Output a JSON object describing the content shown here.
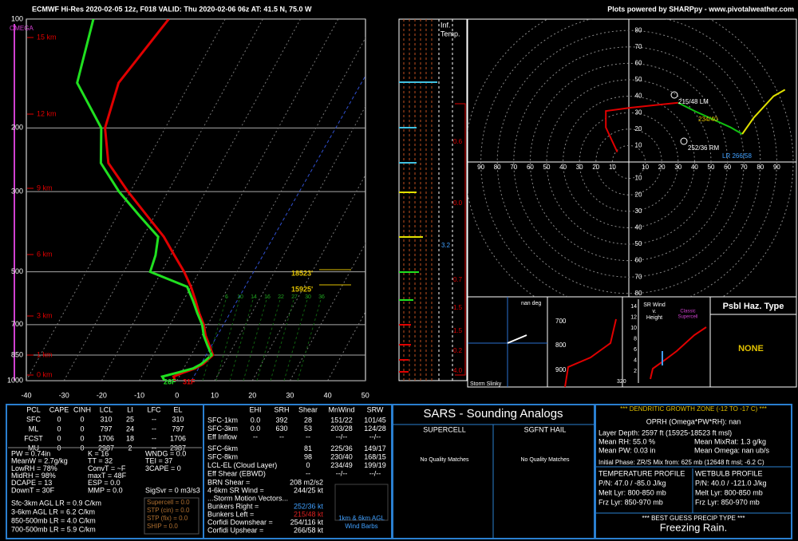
{
  "header": {
    "title": "ECMWF Hi-Res 2020-02-05 12z, F018   VALID: Thu 2020-02-06 06z   AT: 41.5 N, 75.0 W",
    "credit": "Plots powered by SHARPpy - www.pivotalweather.com"
  },
  "skewt": {
    "omega_label": "OMEGA",
    "pressure_ticks": [
      100,
      200,
      300,
      500,
      700,
      850,
      1000
    ],
    "temp_ticks": [
      -40,
      -30,
      -20,
      -10,
      0,
      10,
      20,
      30,
      40,
      50
    ],
    "height_labels": [
      "15 km",
      "12 km",
      "9 km",
      "6 km",
      "3 km",
      "1 km",
      "0 km"
    ],
    "pressure": [
      1000,
      975,
      950,
      925,
      900,
      850,
      800,
      750,
      700,
      650,
      600,
      550,
      500,
      450,
      400,
      350,
      300,
      250,
      200,
      150,
      100
    ],
    "temperature": [
      -0.5,
      -1.5,
      0.5,
      3,
      4.5,
      5.8,
      3.5,
      1,
      -1.1,
      -4,
      -6.8,
      -10,
      -14,
      -19,
      -24.5,
      -32,
      -40.6,
      -50,
      -56,
      -59,
      -55
    ],
    "dewpoint": [
      -3.3,
      -4.5,
      -1,
      2.5,
      4,
      5.5,
      3,
      0.5,
      -1.5,
      -4.5,
      -7.5,
      -11,
      -23,
      -24,
      -26,
      -34,
      -43,
      -52,
      -57,
      -70,
      -75
    ],
    "surface_dewpoint_label": "26F",
    "surface_temp_label": "31F",
    "dgz_top": "18523'",
    "dgz_bottom": "15925'",
    "mixing_ratio_labels": [
      "6",
      "10",
      "14",
      "16",
      "22",
      "27",
      "30",
      "36"
    ]
  },
  "inferred_temp": {
    "title": [
      "Inf.",
      "Temp."
    ],
    "values": [
      "0.6",
      "0.0",
      "3.2",
      "0.7",
      "1.5",
      "1.5",
      "0.2",
      "4.0"
    ]
  },
  "hodograph": {
    "rings": [
      10,
      20,
      30,
      40,
      50,
      60,
      70,
      80,
      90,
      100
    ],
    "series": [
      {
        "color": "#e00000",
        "u": [
          -7,
          -14,
          -14,
          1,
          20,
          30
        ],
        "v": [
          6,
          21,
          31,
          33,
          35,
          36
        ]
      },
      {
        "color": "#10c010",
        "u": [
          30,
          40,
          62,
          69
        ],
        "v": [
          36,
          31,
          21,
          17
        ]
      },
      {
        "color": "#e0e000",
        "u": [
          69,
          76,
          88,
          95
        ],
        "v": [
          17,
          27,
          40,
          44
        ]
      }
    ],
    "labels": [
      "215/48 LM",
      "252/36 RM",
      "234/40",
      "LR 266/58"
    ]
  },
  "slinky": {
    "deg": "nan deg",
    "title": "Storm Slinky"
  },
  "theta_panel": {
    "ticks": [
      "700",
      "800",
      "900"
    ],
    "corner": "320"
  },
  "sr_wind": {
    "title": [
      "SR Wind",
      "v.",
      "Height"
    ],
    "ticks": [
      14,
      12,
      10,
      8,
      6,
      4,
      2
    ],
    "note": [
      "Classic",
      "Supercell"
    ]
  },
  "hazard": {
    "title": "Psbl Haz. Type",
    "value": "NONE"
  },
  "thermo": {
    "header": [
      "PCL",
      "CAPE",
      "CINH",
      "LCL",
      "LI",
      "LFC",
      "EL"
    ],
    "rows": [
      [
        "SFC",
        "0",
        "0",
        "310",
        "25",
        "--",
        "310"
      ],
      [
        "ML",
        "0",
        "0",
        "797",
        "24",
        "--",
        "797"
      ],
      [
        "FCST",
        "0",
        "0",
        "1706",
        "18",
        "--",
        "1706"
      ],
      [
        "MU",
        "0",
        "0",
        "2987",
        "2",
        "--",
        "2987"
      ]
    ],
    "indices": [
      [
        "PW = 0.74in",
        "K = 16",
        "WNDG = 0.0"
      ],
      [
        "MeanW = 2.7g/kg",
        "TT = 32",
        "TEI = 37"
      ],
      [
        "LowRH = 78%",
        "ConvT = ~F",
        "3CAPE = 0"
      ],
      [
        "MidRH = 98%",
        "maxT = 48F"
      ],
      [
        "DCAPE = 13",
        "ESP = 0.0"
      ],
      [
        "DownT = 30F",
        "MMP = 0.0",
        "SigSvr = 0 m3/s3"
      ]
    ],
    "lapse": [
      "Sfc-3km AGL LR = 0.9 C/km",
      "3-6km AGL LR = 6.2 C/km",
      "850-500mb LR = 4.0 C/km",
      "700-500mb LR = 5.9 C/km"
    ],
    "severe": [
      "Supercell = 0.0",
      "STP (cin) = 0.0",
      "STP (fix) = 0.0",
      "SHIP = 0.0"
    ]
  },
  "kinematic": {
    "header": [
      "EHI",
      "SRH",
      "Shear",
      "MnWind",
      "SRW"
    ],
    "rows": [
      [
        "SFC-1km",
        "0.0",
        "392",
        "28",
        "151/22",
        "101/45"
      ],
      [
        "SFC-3km",
        "0.0",
        "630",
        "53",
        "203/28",
        "124/28"
      ],
      [
        "Eff Inflow",
        "--",
        "--",
        "--",
        "--/--",
        "--/--"
      ],
      [
        "SFC-6km",
        "",
        "",
        "81",
        "225/36",
        "149/17"
      ],
      [
        "SFC-8km",
        "",
        "",
        "98",
        "230/40",
        "168/15"
      ],
      [
        "LCL-EL (Cloud Layer)",
        "",
        "",
        "0",
        "234/49",
        "199/19"
      ],
      [
        "Eff Shear (EBWD)",
        "",
        "",
        "--",
        "--/--",
        "--/--"
      ]
    ],
    "params": [
      [
        "BRN Shear =",
        "208 m2/s2"
      ],
      [
        "4-6km SR Wind =",
        "244/25 kt"
      ]
    ],
    "vectors_title": "...Storm Motion Vectors...",
    "vectors": [
      [
        "Bunkers Right =",
        "252/36 kt"
      ],
      [
        "Bunkers Left =",
        "215/48 kt"
      ],
      [
        "Corfidi Downshear =",
        "254/116 kt"
      ],
      [
        "Corfidi Upshear =",
        "266/58 kt"
      ]
    ],
    "barb_label": [
      "1km & 6km AGL",
      "Wind Barbs"
    ]
  },
  "sars": {
    "title": "SARS - Sounding Analogs",
    "supercell": "SUPERCELL",
    "hail": "SGFNT HAIL",
    "supercell_result": "No Quality Matches",
    "hail_result": "No Quality Matches"
  },
  "winter": {
    "title": "*** DENDRITIC GROWTH ZONE (-12 TO -17 C) ***",
    "oprh": "OPRH (Omega*PW*RH): nan",
    "depth": "Layer Depth: 2597 ft (15925-18523 ft msl)",
    "mean": [
      [
        "Mean RH: 55.0 %",
        "Mean MixRat: 1.3 g/kg"
      ],
      [
        "Mean PW: 0.03 in",
        "Mean Omega: nan ub/s"
      ]
    ],
    "phase": "Initial Phase: ZR/S Mix from: 625 mb (12648 ft msl; -6.2 C)",
    "temp_profile": [
      "TEMPERATURE PROFILE",
      "P/N: 47.0 / -85.0 J/kg",
      "Melt Lyr: 800-850 mb",
      "Frz Lyr: 850-970 mb"
    ],
    "wetbulb_profile": [
      "WETBULB PROFILE",
      "P/N: 40.0 / -121.0 J/kg",
      "Melt Lyr: 800-850 mb",
      "Frz Lyr: 850-970 mb"
    ],
    "best_title": "*** BEST GUESS PRECIP TYPE ***",
    "best": "Freezing Rain."
  }
}
